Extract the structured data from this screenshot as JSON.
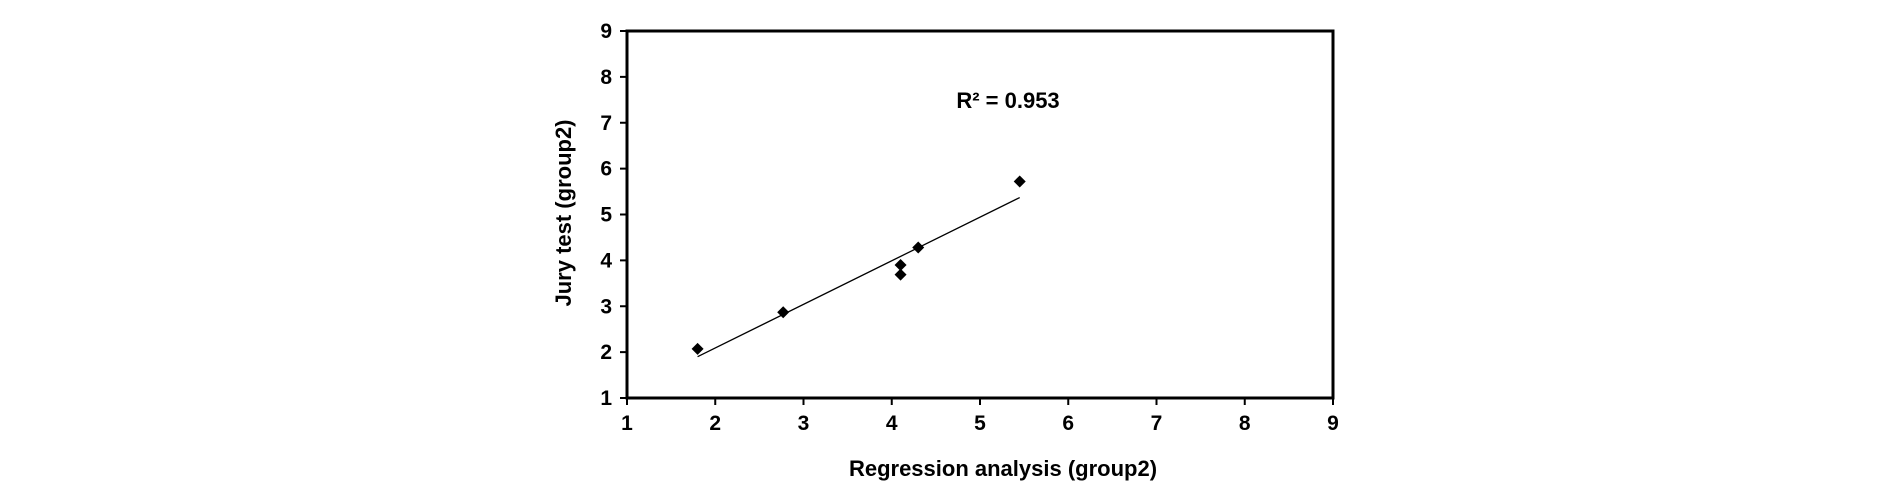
{
  "chart_data": {
    "type": "scatter",
    "title": "",
    "xlabel": "Regression analysis (group2)",
    "ylabel": "Jury test (group2)",
    "xlim": [
      1,
      9
    ],
    "ylim": [
      1,
      9
    ],
    "xticks": [
      "1",
      "2",
      "3",
      "4",
      "5",
      "6",
      "7",
      "8",
      "9"
    ],
    "yticks": [
      "1",
      "2",
      "3",
      "4",
      "5",
      "6",
      "7",
      "8",
      "9"
    ],
    "grid": false,
    "legend": "none",
    "series": [
      {
        "marker": "diamond",
        "color": "#000000",
        "points": [
          {
            "x": 1.8,
            "y": 2.07
          },
          {
            "x": 2.77,
            "y": 2.87
          },
          {
            "x": 4.1,
            "y": 3.69
          },
          {
            "x": 4.1,
            "y": 3.9
          },
          {
            "x": 4.3,
            "y": 4.28
          },
          {
            "x": 5.45,
            "y": 5.72
          }
        ]
      }
    ],
    "trendline": {
      "type": "linear",
      "from": {
        "x": 1.8,
        "y": 1.9
      },
      "to": {
        "x": 5.45,
        "y": 5.37
      }
    },
    "annotation": "R² = 0.953"
  }
}
